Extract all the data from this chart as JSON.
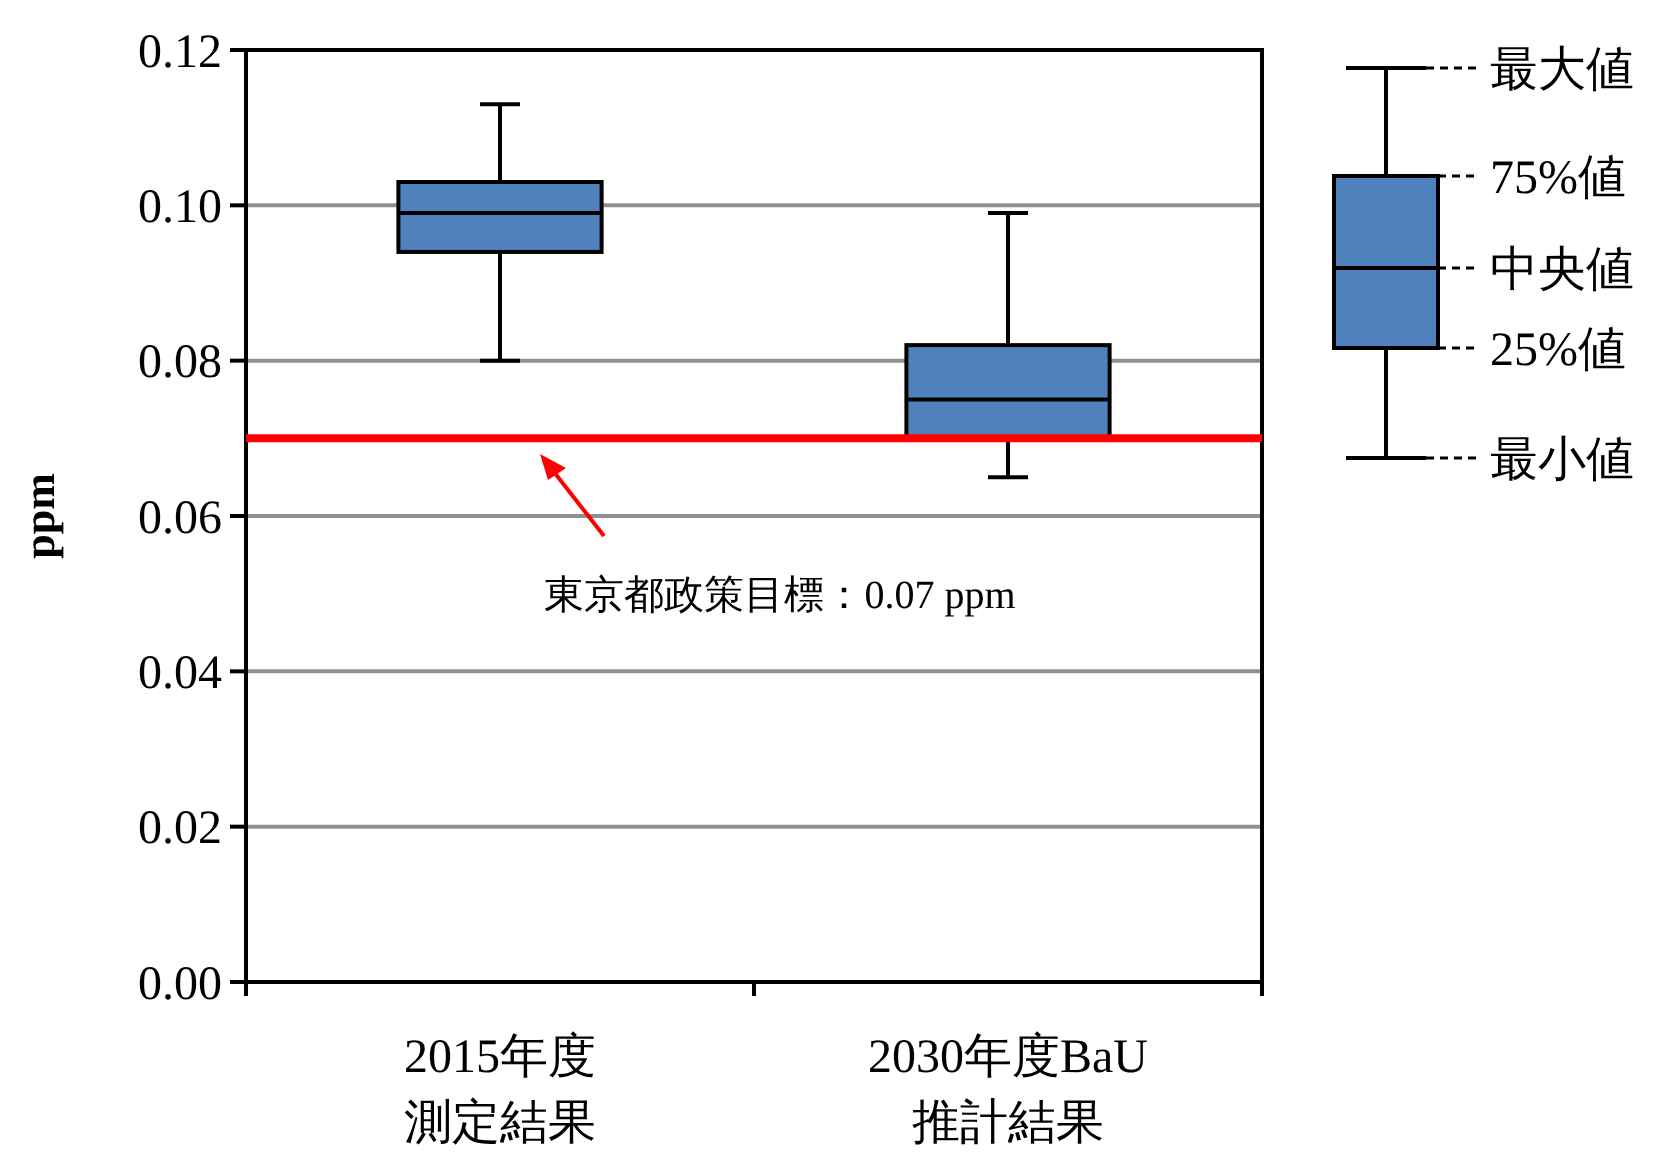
{
  "chart_data": {
    "type": "box",
    "ylabel": "ppm",
    "categories": [
      "2015年度測定結果",
      "2030年度BaU推計結果"
    ],
    "boxes": [
      {
        "low": 0.08,
        "q1": 0.094,
        "median": 0.099,
        "q3": 0.103,
        "high": 0.113
      },
      {
        "low": 0.065,
        "q1": 0.07,
        "median": 0.075,
        "q3": 0.082,
        "high": 0.099
      }
    ],
    "color": "#4f81bd",
    "ylim": [
      0,
      0.12
    ],
    "yticks": [
      {
        "value": 0,
        "label": "0.00"
      },
      {
        "value": 0.02,
        "label": "0.02"
      },
      {
        "value": 0.04,
        "label": "0.04"
      },
      {
        "value": 0.06,
        "label": "0.06"
      },
      {
        "value": 0.08,
        "label": "0.08"
      },
      {
        "value": 0.1,
        "label": "0.10"
      },
      {
        "value": 0.12,
        "label": "0.12"
      }
    ],
    "grid": "y",
    "ref_lines": [
      {
        "axis": "y",
        "value": 0.07,
        "label": "東京都政策目標：0.07 ppm",
        "color": "#ff0000"
      }
    ],
    "annotations": [
      "最大値",
      "75%値",
      "中央値",
      "25%値",
      "最小値"
    ]
  }
}
